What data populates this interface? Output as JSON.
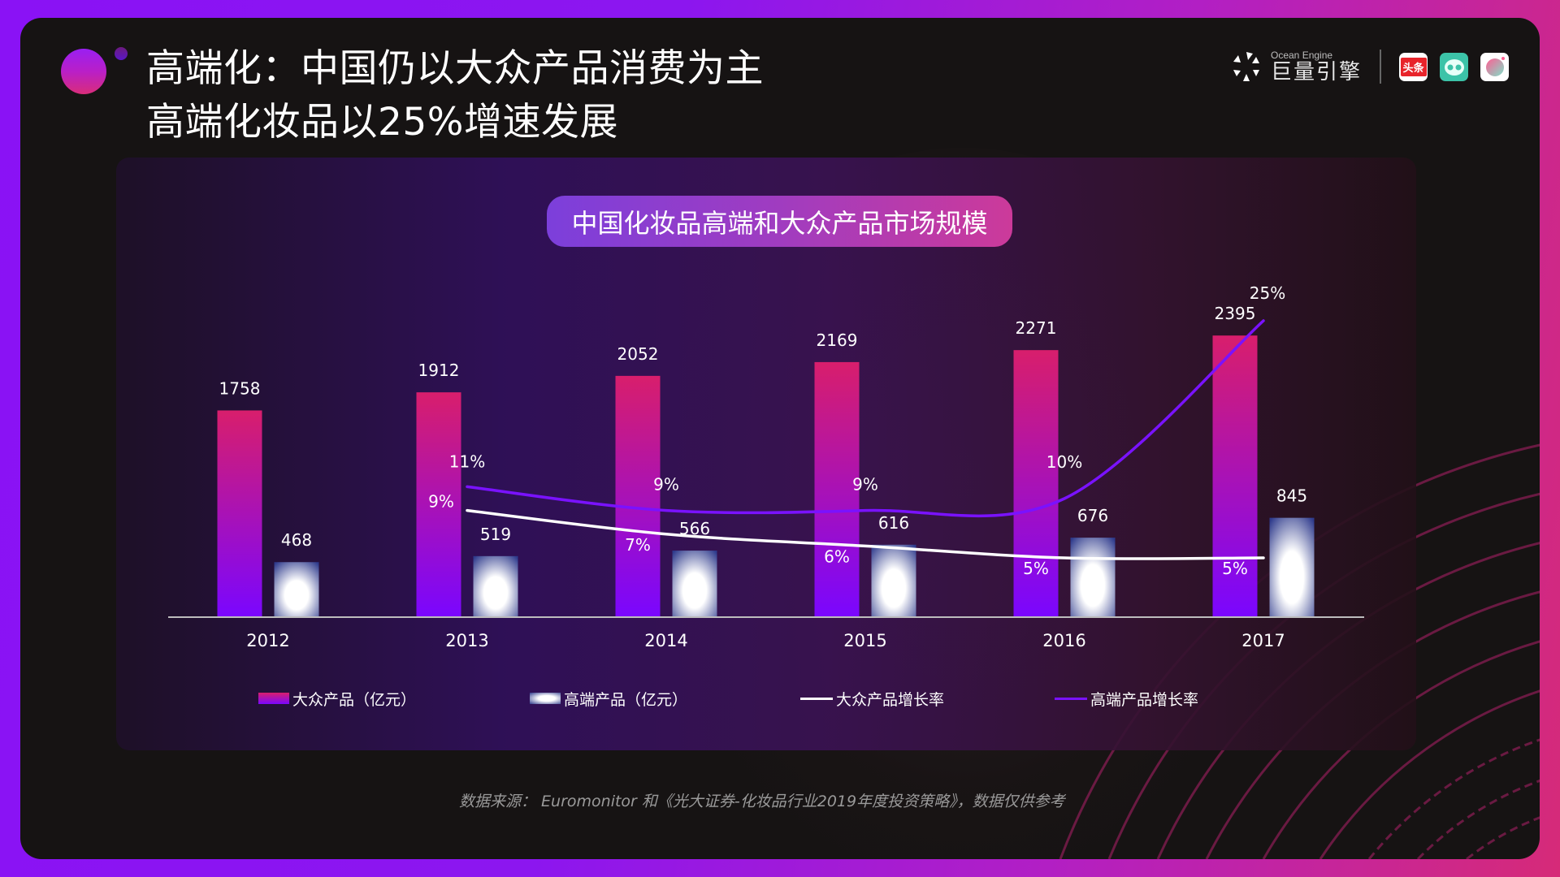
{
  "slide": {
    "title_line1": "高端化：中国仍以大众产品消费为主",
    "title_line2": "高端化妆品以25%增速发展",
    "brand": {
      "name_en": "Ocean Engine",
      "name_cn": "巨量引擎",
      "apps": [
        {
          "name": "toutiao-icon",
          "label": "头条"
        },
        {
          "name": "faceu-icon",
          "label": ""
        },
        {
          "name": "qingyan-camera-icon",
          "label": ""
        }
      ]
    },
    "source": "数据来源： Euromonitor 和《光大证券-化妆品行业2019年度投资策略》，数据仅供参考"
  },
  "colors": {
    "mass_top": "#d81e6c",
    "mass_bottom": "#7a06ff",
    "premium_center": "#ffffff",
    "premium_edge": "#2e3a8c",
    "mass_growth_line": "#ffffff",
    "premium_growth_line": "#7a12ff"
  },
  "chart_data": {
    "type": "bar",
    "title": "中国化妆品高端和大众产品市场规模",
    "categories": [
      "2012",
      "2013",
      "2014",
      "2015",
      "2016",
      "2017"
    ],
    "series": [
      {
        "name": "大众产品（亿元）",
        "type": "bar",
        "values": [
          1758,
          1912,
          2052,
          2169,
          2271,
          2395
        ]
      },
      {
        "name": "高端产品（亿元）",
        "type": "bar",
        "values": [
          468,
          519,
          566,
          616,
          676,
          845
        ]
      },
      {
        "name": "大众产品增长率",
        "type": "line",
        "axis": "secondary",
        "values": [
          null,
          9,
          7,
          6,
          5,
          5
        ],
        "labels": [
          "",
          "9%",
          "7%",
          "6%",
          "5%",
          "5%"
        ]
      },
      {
        "name": "高端产品增长率",
        "type": "line",
        "axis": "secondary",
        "values": [
          null,
          11,
          9,
          9,
          10,
          25
        ],
        "labels": [
          "",
          "11%",
          "9%",
          "9%",
          "10%",
          "25%"
        ]
      }
    ],
    "xlabel": "",
    "ylabel": "",
    "ylim": [
      0,
      3500
    ],
    "y2lim": [
      0,
      40
    ],
    "legend_position": "bottom",
    "grid": false
  }
}
